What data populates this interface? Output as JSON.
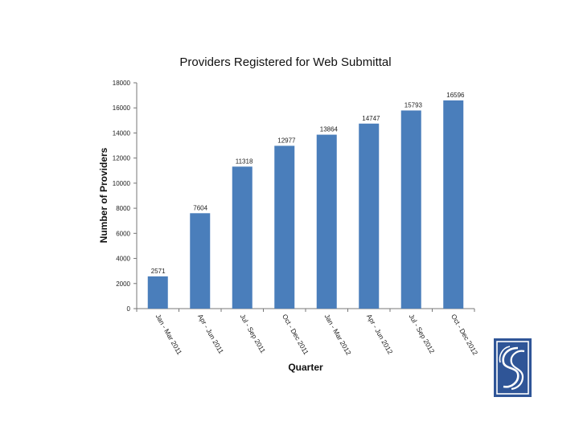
{
  "chart_data": {
    "type": "bar",
    "title": "Providers Registered for Web Submittal",
    "xlabel": "Quarter",
    "ylabel": "Number of Providers",
    "categories": [
      "Jan - Mar 2011",
      "Apr - Jun 2011",
      "Jul - Sep 2011",
      "Oct - Dec 2011",
      "Jan - Mar 2012",
      "Apr - Jun 2012",
      "Jul - Sep 2012",
      "Oct - Dec 2012"
    ],
    "values": [
      2571,
      7604,
      11318,
      12977,
      13864,
      14747,
      15793,
      16596
    ],
    "data_labels": [
      "2571",
      "7604",
      "11318",
      "12977",
      "13864",
      "14747",
      "15793",
      "16596"
    ],
    "ylim": [
      0,
      18000
    ],
    "yticks": [
      0,
      2000,
      4000,
      6000,
      8000,
      10000,
      12000,
      14000,
      16000,
      18000
    ],
    "grid": false,
    "legend": "none",
    "bar_color": "#4a7ebb"
  },
  "logo": {
    "icon": "organization-logo-icon",
    "background": "#2f5597",
    "foreground": "#ffffff"
  }
}
